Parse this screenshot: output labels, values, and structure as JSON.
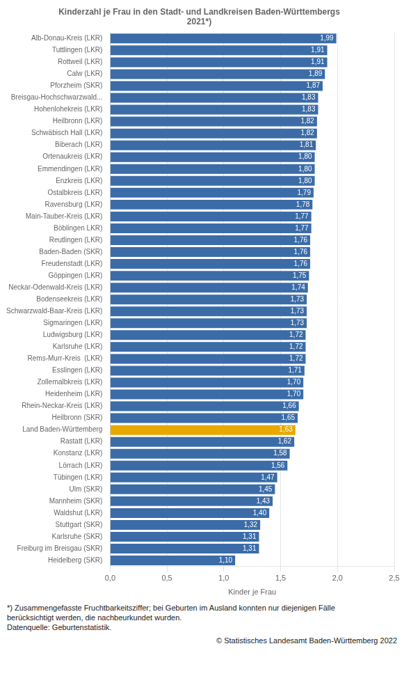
{
  "chart_data": {
    "type": "bar",
    "orientation": "horizontal",
    "title": "Kinderzahl je Frau in den Stadt- und Landkreisen Baden-Württembergs\n2021*)",
    "xlabel": "Kinder je Frau",
    "categories": [
      "Alb-Donau-Kreis (LKR)",
      "Tuttlingen (LKR)",
      "Rottweil (LKR)",
      "Calw (LKR)",
      "Pforzheim (SKR)",
      "Breisgau-Hochschwarzwald...",
      "Hohenlohekreis (LKR)",
      "Heilbronn (LKR)",
      "Schwäbisch Hall (LKR)",
      "Biberach (LKR)",
      "Ortenaukreis (LKR)",
      "Emmendingen (LKR)",
      "Enzkreis (LKR)",
      "Ostalbkreis (LKR)",
      "Ravensburg (LKR)",
      "Main-Tauber-Kreis (LKR)",
      "Böblingen LKR)",
      "Reutlingen (LKR)",
      "Baden-Baden (SKR)",
      "Freudenstadt (LKR)",
      "Göppingen (LKR)",
      "Neckar-Odenwald-Kreis (LKR)",
      "Bodenseekreis (LKR)",
      "Schwarzwald-Baar-Kreis (LKR)",
      "Sigmaringen (LKR)",
      "Ludwigsburg (LKR)",
      "Karlsruhe (LKR)",
      "Rems-Murr-Kreis  (LKR)",
      "Esslingen (LKR)",
      "Zollernalbkreis (LKR)",
      "Heidenheim (LKR)",
      "Rhein-Neckar-Kreis (LKR)",
      "Heilbronn (SKR)",
      "Land Baden-Württemberg",
      "Rastatt (LKR)",
      "Konstanz (LKR)",
      "Lörrach (LKR)",
      "Tübingen (LKR)",
      "Ulm (SKR)",
      "Mannheim (SKR)",
      "Waldshut (LKR)",
      "Stuttgart (SKR)",
      "Karlsruhe (SKR)",
      "Freiburg im Breisgau (SKR)",
      "Heidelberg (SKR)"
    ],
    "values": [
      1.99,
      1.91,
      1.91,
      1.89,
      1.87,
      1.83,
      1.83,
      1.82,
      1.82,
      1.81,
      1.8,
      1.8,
      1.8,
      1.79,
      1.78,
      1.77,
      1.77,
      1.76,
      1.76,
      1.76,
      1.75,
      1.74,
      1.73,
      1.73,
      1.73,
      1.72,
      1.72,
      1.72,
      1.71,
      1.7,
      1.7,
      1.66,
      1.65,
      1.63,
      1.62,
      1.58,
      1.56,
      1.47,
      1.45,
      1.43,
      1.4,
      1.32,
      1.31,
      1.31,
      1.1
    ],
    "value_labels": [
      "1,99",
      "1,91",
      "1,91",
      "1,89",
      "1,87",
      "1,83",
      "1,83",
      "1,82",
      "1,82",
      "1,81",
      "1,80",
      "1,80",
      "1,80",
      "1,79",
      "1,78",
      "1,77",
      "1,77",
      "1,76",
      "1,76",
      "1,76",
      "1,75",
      "1,74",
      "1,73",
      "1,73",
      "1,73",
      "1,72",
      "1,72",
      "1,72",
      "1,71",
      "1,70",
      "1,70",
      "1,66",
      "1,65",
      "1,63",
      "1,62",
      "1,58",
      "1,56",
      "1,47",
      "1,45",
      "1,43",
      "1,40",
      "1,32",
      "1,31",
      "1,31",
      "1,10"
    ],
    "colors": [
      "#3B6CA8",
      "#3B6CA8",
      "#3B6CA8",
      "#3B6CA8",
      "#3B6CA8",
      "#3B6CA8",
      "#3B6CA8",
      "#3B6CA8",
      "#3B6CA8",
      "#3B6CA8",
      "#3B6CA8",
      "#3B6CA8",
      "#3B6CA8",
      "#3B6CA8",
      "#3B6CA8",
      "#3B6CA8",
      "#3B6CA8",
      "#3B6CA8",
      "#3B6CA8",
      "#3B6CA8",
      "#3B6CA8",
      "#3B6CA8",
      "#3B6CA8",
      "#3B6CA8",
      "#3B6CA8",
      "#3B6CA8",
      "#3B6CA8",
      "#3B6CA8",
      "#3B6CA8",
      "#3B6CA8",
      "#3B6CA8",
      "#3B6CA8",
      "#3B6CA8",
      "#E8A800",
      "#3B6CA8",
      "#3B6CA8",
      "#3B6CA8",
      "#3B6CA8",
      "#3B6CA8",
      "#3B6CA8",
      "#3B6CA8",
      "#3B6CA8",
      "#3B6CA8",
      "#3B6CA8",
      "#3B6CA8"
    ],
    "data_labels": true,
    "xlim": [
      0,
      2.5
    ],
    "xticks": [
      {
        "value": 0.0,
        "label": "0,0"
      },
      {
        "value": 0.5,
        "label": "0,5"
      },
      {
        "value": 1.0,
        "label": "1,0"
      },
      {
        "value": 1.5,
        "label": "1,5"
      },
      {
        "value": 2.0,
        "label": "2,0"
      },
      {
        "value": 2.5,
        "label": "2,5"
      }
    ],
    "grid": true,
    "footnote": "*) Zusammengefasste Fruchtbarkeitsziffer; bei Geburten im Ausland konnten nur diejenigen Fälle\nberücksichtigt werden, die nachbeurkundet wurden.\nDatenquelle: Geburtenstatistik.",
    "copyright": "© Statistisches Landesamt Baden-Württemberg 2022"
  }
}
